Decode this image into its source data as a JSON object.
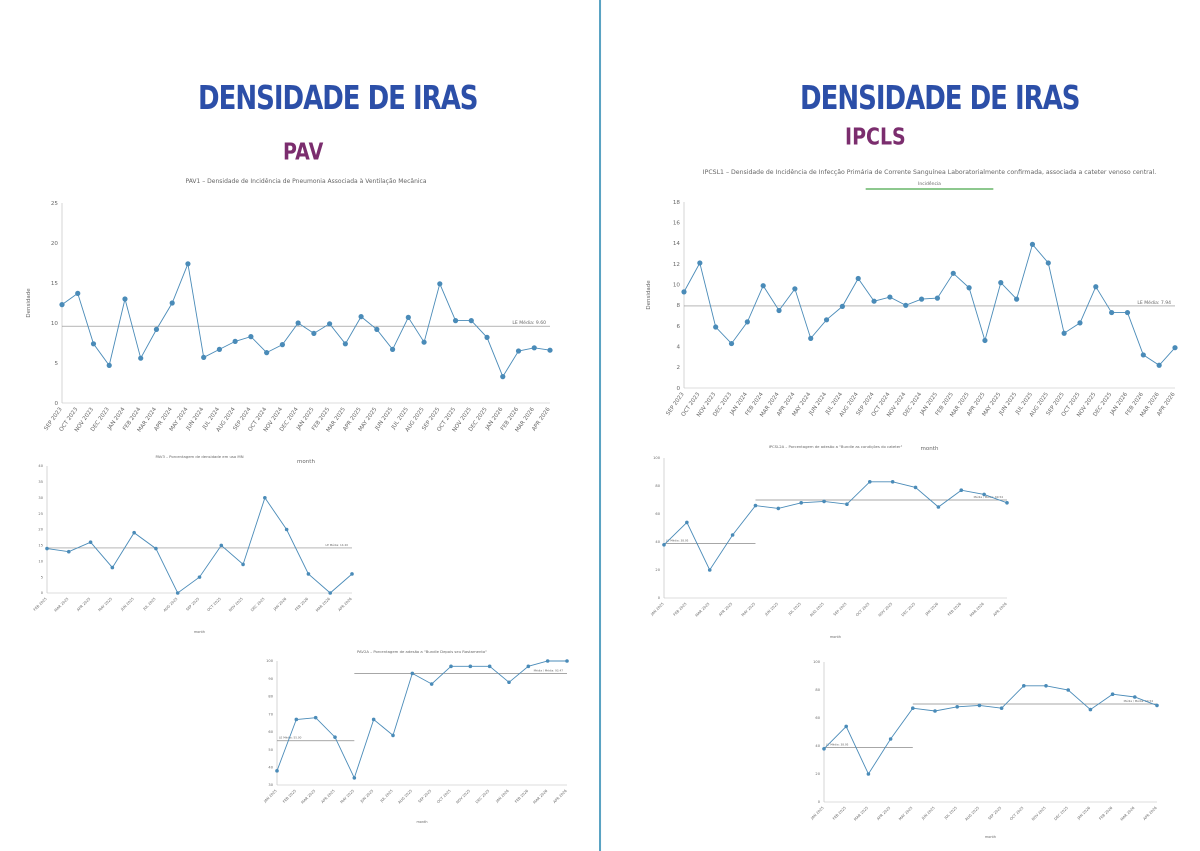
{
  "left_page": {
    "title": "DENSIDADE DE IRAS",
    "subtitle": "PAV"
  },
  "right_page": {
    "title": "DENSIDADE DE IRAS",
    "subtitle": "IPCLS"
  },
  "colors": {
    "line": "#4a8bb8",
    "mean": "#8a8a8a",
    "title": "#2c4fa8",
    "subtitle": "#7b2d6e",
    "legend_bar": "#49a84b"
  },
  "chart_data": [
    {
      "id": "pav-main",
      "type": "line",
      "title": "PAV1 – Densidade de Incidência de Pneumonia Associada à Ventilação Mecânica",
      "xlabel": "month",
      "ylabel": "Densidade",
      "ylim": [
        0,
        25
      ],
      "yticks": [
        0,
        5,
        10,
        15,
        20,
        25
      ],
      "categories": [
        "SEP 2023",
        "OCT 2023",
        "NOV 2023",
        "DEC 2023",
        "JAN 2024",
        "FEB 2024",
        "MAR 2024",
        "APR 2024",
        "MAY 2024",
        "JUN 2024",
        "JUL 2024",
        "AUG 2024",
        "SEP 2024",
        "OCT 2024",
        "NOV 2024",
        "DEC 2024",
        "JAN 2025",
        "FEB 2025",
        "MAR 2025",
        "APR 2025",
        "MAY 2025",
        "JUN 2025",
        "JUL 2025",
        "AUG 2025",
        "SEP 2025",
        "OCT 2025",
        "NOV 2025",
        "DEC 2025",
        "JAN 2026",
        "FEB 2026",
        "MAR 2026",
        "APR 2026"
      ],
      "values": [
        12.3,
        13.7,
        7.4,
        4.7,
        13.0,
        5.6,
        9.2,
        12.5,
        17.4,
        5.7,
        6.7,
        7.7,
        8.3,
        6.3,
        7.3,
        10.0,
        8.7,
        9.9,
        7.4,
        10.8,
        9.2,
        6.7,
        10.7,
        7.6,
        14.9,
        10.3,
        10.3,
        8.2,
        3.3,
        6.5,
        6.9,
        6.6
      ],
      "mean": 9.6,
      "mean_label": "LE Média: 9.60",
      "grid": false
    },
    {
      "id": "pav-sub1",
      "type": "line",
      "title": "PAV3 – Porcentagem de densidade em uso MN",
      "xlabel": "month",
      "ylim": [
        0,
        40
      ],
      "yticks": [
        0,
        5,
        10,
        15,
        20,
        25,
        30,
        35,
        40
      ],
      "categories": [
        "FEB 2025",
        "MAR 2025",
        "APR 2025",
        "MAY 2025",
        "JUN 2025",
        "JUL 2025",
        "AUG 2025",
        "SEP 2025",
        "OCT 2025",
        "NOV 2025",
        "DEC 2025",
        "JAN 2026",
        "FEB 2026",
        "MAR 2026",
        "APR 2026"
      ],
      "values": [
        14,
        13,
        16,
        8,
        19,
        14,
        0,
        5,
        15,
        9,
        30,
        20,
        6,
        0,
        6
      ],
      "mean": 14.2,
      "mean_label": "LE Média: 14.20"
    },
    {
      "id": "pav-sub2",
      "type": "line",
      "title": "PAV2A – Porcentagem de adesão a \"Bundle Depois seu Rastamento\"",
      "xlabel": "month",
      "ylim": [
        30,
        100
      ],
      "yticks": [
        30,
        40,
        50,
        60,
        70,
        80,
        90,
        100
      ],
      "categories": [
        "JAN 2025",
        "FEB 2025",
        "MAR 2025",
        "APR 2025",
        "MAY 2025",
        "JUN 2025",
        "JUL 2025",
        "AUG 2025",
        "SEP 2025",
        "OCT 2025",
        "NOV 2025",
        "DEC 2025",
        "JAN 2026",
        "FEB 2026",
        "MAR 2026",
        "APR 2026"
      ],
      "values": [
        38,
        67,
        68,
        57,
        34,
        67,
        58,
        93,
        87,
        97,
        97,
        97,
        88,
        97,
        100,
        100
      ],
      "mean": 55,
      "mean_label": "LE Média: 55.00",
      "mean2": 93,
      "mean2_label": "Média / Média: 93.47"
    },
    {
      "id": "ipcls-main",
      "type": "line",
      "title": "IPCSL1 – Densidade de Incidência de Infecção Primária de Corrente Sanguínea Laboratorialmente confirmada, associada a cateter venoso central.",
      "xlabel": "month",
      "ylabel": "Densidade",
      "legend": "Incidência",
      "ylim": [
        0,
        18
      ],
      "yticks": [
        0,
        2,
        4,
        6,
        8,
        10,
        12,
        14,
        16,
        18
      ],
      "categories": [
        "SEP 2023",
        "OCT 2023",
        "NOV 2023",
        "DEC 2023",
        "JAN 2024",
        "FEB 2024",
        "MAR 2024",
        "APR 2024",
        "MAY 2024",
        "JUN 2024",
        "JUL 2024",
        "AUG 2024",
        "SEP 2024",
        "OCT 2024",
        "NOV 2024",
        "DEC 2024",
        "JAN 2025",
        "FEB 2025",
        "MAR 2025",
        "APR 2025",
        "MAY 2025",
        "JUN 2025",
        "JUL 2025",
        "AUG 2025",
        "SEP 2025",
        "OCT 2025",
        "NOV 2025",
        "DEC 2025",
        "JAN 2026",
        "FEB 2026",
        "MAR 2026",
        "APR 2026"
      ],
      "values": [
        9.3,
        12.1,
        5.9,
        4.3,
        6.4,
        9.9,
        7.5,
        9.6,
        4.8,
        6.6,
        7.9,
        10.6,
        8.4,
        8.8,
        8.0,
        8.6,
        8.7,
        11.1,
        9.7,
        4.6,
        10.2,
        8.6,
        13.9,
        12.1,
        5.3,
        6.3,
        9.8,
        7.3,
        7.3,
        3.2,
        2.2,
        3.9
      ],
      "mean": 7.94,
      "mean_label": "LE Média: 7.94",
      "grid": false
    },
    {
      "id": "ipcls-sub1",
      "type": "line",
      "title": "IPCSL2A – Porcentagem de adesão a \"Bundle as condições do cateter\"",
      "xlabel": "month",
      "ylim": [
        0,
        100
      ],
      "yticks": [
        0,
        20,
        40,
        60,
        80,
        100
      ],
      "categories": [
        "JAN 2025",
        "FEB 2025",
        "MAR 2025",
        "APR 2025",
        "MAY 2025",
        "JUN 2025",
        "JUL 2025",
        "AUG 2025",
        "SEP 2025",
        "OCT 2025",
        "NOV 2025",
        "DEC 2025",
        "JAN 2026",
        "FEB 2026",
        "MAR 2026",
        "APR 2026"
      ],
      "values": [
        38,
        54,
        20,
        45,
        66,
        64,
        68,
        69,
        67,
        83,
        83,
        79,
        65,
        77,
        74,
        68
      ],
      "mean": 39,
      "mean_label": "LE Média: 38.95",
      "mean2": 70,
      "mean2_label": "Média / Média: 69.54"
    },
    {
      "id": "ipcls-sub2",
      "type": "line",
      "title": "",
      "xlabel": "month",
      "ylim": [
        0,
        100
      ],
      "yticks": [
        0,
        20,
        40,
        60,
        80,
        100
      ],
      "categories": [
        "JAN 2025",
        "FEB 2025",
        "MAR 2025",
        "APR 2025",
        "MAY 2025",
        "JUN 2025",
        "JUL 2025",
        "AUG 2025",
        "SEP 2025",
        "OCT 2025",
        "NOV 2025",
        "DEC 2025",
        "JAN 2026",
        "FEB 2026",
        "MAR 2026",
        "APR 2026"
      ],
      "values": [
        38,
        54,
        20,
        45,
        67,
        65,
        68,
        69,
        67,
        83,
        83,
        80,
        66,
        77,
        75,
        69
      ],
      "mean": 39,
      "mean_label": "LE Média: 38.95",
      "mean2": 70,
      "mean2_label": "Média / Média: 69.54"
    }
  ]
}
